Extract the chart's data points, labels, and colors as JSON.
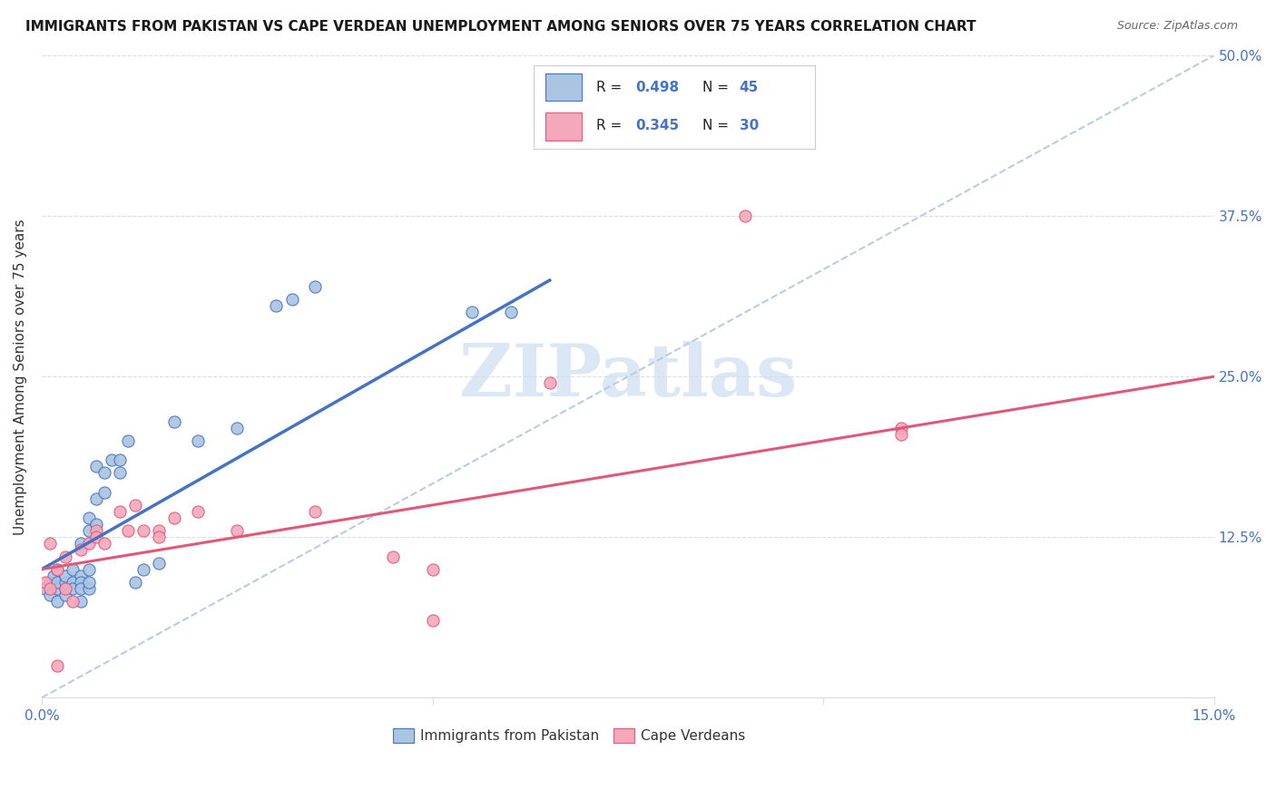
{
  "title": "IMMIGRANTS FROM PAKISTAN VS CAPE VERDEAN UNEMPLOYMENT AMONG SENIORS OVER 75 YEARS CORRELATION CHART",
  "source": "Source: ZipAtlas.com",
  "ylabel": "Unemployment Among Seniors over 75 years",
  "xlabel_blue": "Immigrants from Pakistan",
  "xlabel_pink": "Cape Verdeans",
  "xlim": [
    0,
    0.15
  ],
  "ylim": [
    0,
    0.5
  ],
  "R_blue": 0.498,
  "N_blue": 45,
  "R_pink": 0.345,
  "N_pink": 30,
  "color_blue": "#aac4e2",
  "color_pink": "#f5a8bc",
  "line_blue": "#4472c4",
  "line_pink": "#e05878",
  "line_dashed": "#b8cce4",
  "blue_line_x0": 0.0,
  "blue_line_y0": 0.1,
  "blue_line_x1": 0.065,
  "blue_line_y1": 0.325,
  "pink_line_x0": 0.0,
  "pink_line_y0": 0.1,
  "pink_line_x1": 0.15,
  "pink_line_y1": 0.25,
  "blue_scatter_x": [
    0.0005,
    0.001,
    0.001,
    0.0015,
    0.002,
    0.002,
    0.002,
    0.002,
    0.003,
    0.003,
    0.003,
    0.003,
    0.004,
    0.004,
    0.004,
    0.005,
    0.005,
    0.005,
    0.005,
    0.005,
    0.006,
    0.006,
    0.006,
    0.006,
    0.006,
    0.007,
    0.007,
    0.007,
    0.008,
    0.008,
    0.009,
    0.01,
    0.01,
    0.011,
    0.012,
    0.013,
    0.015,
    0.017,
    0.02,
    0.025,
    0.03,
    0.032,
    0.035,
    0.055,
    0.06
  ],
  "blue_scatter_y": [
    0.085,
    0.09,
    0.08,
    0.095,
    0.085,
    0.075,
    0.09,
    0.1,
    0.085,
    0.09,
    0.08,
    0.095,
    0.09,
    0.085,
    0.1,
    0.095,
    0.12,
    0.09,
    0.075,
    0.085,
    0.13,
    0.14,
    0.1,
    0.085,
    0.09,
    0.135,
    0.155,
    0.18,
    0.16,
    0.175,
    0.185,
    0.175,
    0.185,
    0.2,
    0.09,
    0.1,
    0.105,
    0.215,
    0.2,
    0.21,
    0.305,
    0.31,
    0.32,
    0.3,
    0.3
  ],
  "pink_scatter_x": [
    0.0005,
    0.001,
    0.001,
    0.002,
    0.002,
    0.003,
    0.003,
    0.004,
    0.005,
    0.006,
    0.007,
    0.007,
    0.008,
    0.01,
    0.011,
    0.012,
    0.013,
    0.015,
    0.015,
    0.017,
    0.02,
    0.025,
    0.035,
    0.045,
    0.05,
    0.05,
    0.065,
    0.09,
    0.11,
    0.11
  ],
  "pink_scatter_y": [
    0.09,
    0.12,
    0.085,
    0.1,
    0.025,
    0.11,
    0.085,
    0.075,
    0.115,
    0.12,
    0.13,
    0.125,
    0.12,
    0.145,
    0.13,
    0.15,
    0.13,
    0.13,
    0.125,
    0.14,
    0.145,
    0.13,
    0.145,
    0.11,
    0.1,
    0.06,
    0.245,
    0.375,
    0.21,
    0.205
  ],
  "watermark": "ZIPatlas",
  "watermark_color": "#ccddf0",
  "background_color": "#ffffff",
  "grid_color": "#dddddd",
  "title_color": "#1a1a1a",
  "source_color": "#666666",
  "axis_label_color": "#333333",
  "tick_color": "#4472c4",
  "legend_text_color": "#333333"
}
